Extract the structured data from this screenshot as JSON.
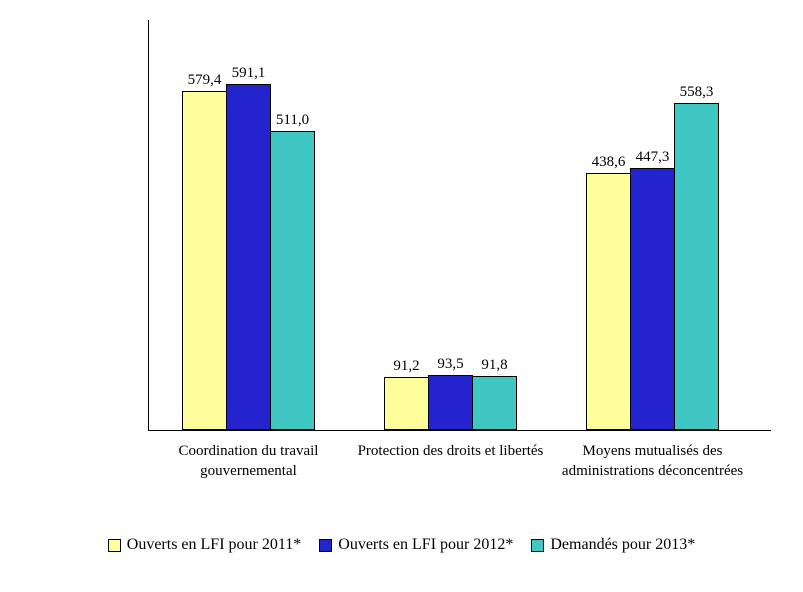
{
  "chart_data": {
    "type": "bar",
    "title": "",
    "xlabel": "",
    "ylabel": "",
    "ylim": [
      0,
      700
    ],
    "grid": false,
    "legend_position": "bottom",
    "axis_color": "#000000",
    "background_color": "#ffffff",
    "value_label_decimal_separator": ",",
    "categories": [
      "Coordination du travail gouvernemental",
      "Protection des droits et libertés",
      "Moyens mutualisés des administrations déconcentrées"
    ],
    "series": [
      {
        "name": "Ouverts en LFI pour 2011*",
        "color": "#FFFF9C",
        "values": [
          579.4,
          91.2,
          438.6
        ],
        "labels": [
          "579,4",
          "91,2",
          "438,6"
        ]
      },
      {
        "name": "Ouverts en LFI pour 2012*",
        "color": "#2424CF",
        "values": [
          591.1,
          93.5,
          447.3
        ],
        "labels": [
          "591,1",
          "93,5",
          "447,3"
        ]
      },
      {
        "name": "Demandés pour 2013*",
        "color": "#3FC8C3",
        "values": [
          511.0,
          91.8,
          558.3
        ],
        "labels": [
          "511,0",
          "91,8",
          "558,3"
        ]
      }
    ]
  }
}
